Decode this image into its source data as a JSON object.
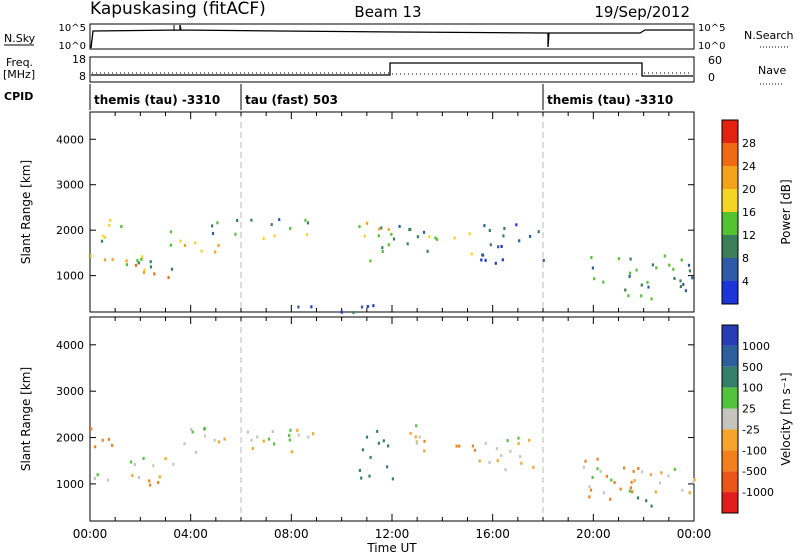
{
  "header": {
    "station": "Kapuskasing (fitACF)",
    "beam": "Beam 13",
    "date": "19/Sep/2012"
  },
  "aux_labels": {
    "nsky": "N.Sky",
    "nsearch": "N.Search",
    "freq": "Freq.",
    "freq_unit": "[MHz]",
    "nave": "Nave",
    "cpid": "CPID",
    "nsky_ticks": [
      "10^5",
      "10^0"
    ],
    "nsearch_ticks": [
      "10^5",
      "10^0"
    ],
    "freq_ticks": [
      "18",
      "8"
    ],
    "nave_ticks": [
      "60",
      "0"
    ]
  },
  "cpid_segments": [
    {
      "label": "themis (tau) -3310",
      "start_hour": 0,
      "end_hour": 6
    },
    {
      "label": "tau (fast) 503",
      "start_hour": 6,
      "end_hour": 18
    },
    {
      "label": "themis (tau) -3310",
      "start_hour": 18,
      "end_hour": 24
    }
  ],
  "colors": {
    "power": [
      "#1d35d8",
      "#2f5aa8",
      "#3a7e5a",
      "#55c232",
      "#f5d426",
      "#f5a21b",
      "#f06a12",
      "#e22310"
    ],
    "velocity": [
      "#2a3cb4",
      "#2c5f9c",
      "#357f6a",
      "#52c33c",
      "#c5c5be",
      "#f6a52a",
      "#f3801d",
      "#ec5519",
      "#e01c1c"
    ]
  },
  "chart_data": [
    {
      "type": "heatmap",
      "title": "",
      "xlabel": "Time UT",
      "ylabel": "Slant Range [km]",
      "x_tick_labels": [
        "00:00",
        "04:00",
        "08:00",
        "12:00",
        "16:00",
        "20:00",
        "00:00"
      ],
      "xlim": [
        0,
        24
      ],
      "ylim": [
        200,
        4600
      ],
      "y_ticks": [
        1000,
        2000,
        3000,
        4000
      ],
      "colorbar": {
        "label": "Power [dB]",
        "range": [
          0,
          32
        ],
        "ticks": [
          "4",
          "8",
          "12",
          "16",
          "20",
          "24",
          "28"
        ]
      },
      "dashed_vlines_hour": [
        6,
        18
      ],
      "echo_regions": [
        {
          "t0": 0,
          "t1": 2.6,
          "r0": 1050,
          "r1": 1500,
          "value": 20
        },
        {
          "t0": 0,
          "t1": 1.3,
          "r0": 1700,
          "r1": 2300,
          "value": 14
        },
        {
          "t0": 1.3,
          "t1": 3.4,
          "r0": 1150,
          "r1": 1600,
          "value": 12
        },
        {
          "t0": 2.3,
          "t1": 3.2,
          "r0": 800,
          "r1": 1100,
          "value": 26
        },
        {
          "t0": 3.0,
          "t1": 5.2,
          "r0": 1500,
          "r1": 2000,
          "value": 18
        },
        {
          "t0": 4.8,
          "t1": 9.0,
          "r0": 1850,
          "r1": 2300,
          "value": 12
        },
        {
          "t0": 10.5,
          "t1": 12.0,
          "r0": 1100,
          "r1": 2200,
          "value": 16
        },
        {
          "t0": 12.0,
          "t1": 13.3,
          "r0": 1600,
          "r1": 2400,
          "value": 8
        },
        {
          "t0": 13.3,
          "t1": 15.2,
          "r0": 1500,
          "r1": 2000,
          "value": 16
        },
        {
          "t0": 15.2,
          "t1": 18.0,
          "r0": 1300,
          "r1": 2200,
          "value": 6
        },
        {
          "t0": 19.4,
          "t1": 24.0,
          "r0": 700,
          "r1": 1500,
          "value": 10
        },
        {
          "t0": 21.0,
          "t1": 22.4,
          "r0": 500,
          "r1": 900,
          "value": 14
        },
        {
          "t0": 6.0,
          "t1": 11.5,
          "r0": 200,
          "r1": 380,
          "value": 4
        }
      ]
    },
    {
      "type": "heatmap",
      "title": "",
      "xlabel": "Time UT",
      "ylabel": "Slant Range [km]",
      "x_tick_labels": [
        "00:00",
        "04:00",
        "08:00",
        "12:00",
        "16:00",
        "20:00",
        "00:00"
      ],
      "xlim": [
        0,
        24
      ],
      "ylim": [
        200,
        4600
      ],
      "y_ticks": [
        1000,
        2000,
        3000,
        4000
      ],
      "colorbar": {
        "label": "Velocity [m s^-1]",
        "ticks": [
          "1000",
          "500",
          "100",
          "25",
          "-25",
          "-100",
          "-500",
          "-1000"
        ]
      },
      "dashed_vlines_hour": [
        6,
        18
      ],
      "echo_regions": [
        {
          "t0": 0,
          "t1": 3.4,
          "r0": 1100,
          "r1": 1600,
          "value": 0
        },
        {
          "t0": 0,
          "t1": 1.3,
          "r0": 1800,
          "r1": 2300,
          "value": -300
        },
        {
          "t0": 2.3,
          "t1": 3.2,
          "r0": 700,
          "r1": 1100,
          "value": -400
        },
        {
          "t0": 3.0,
          "t1": 9.0,
          "r0": 1700,
          "r1": 2300,
          "value": 0
        },
        {
          "t0": 10.5,
          "t1": 12.0,
          "r0": 1100,
          "r1": 2200,
          "value": 150
        },
        {
          "t0": 12.0,
          "t1": 13.3,
          "r0": 1500,
          "r1": 2300,
          "value": 0
        },
        {
          "t0": 13.2,
          "t1": 15.3,
          "r0": 1650,
          "r1": 2000,
          "value": -450
        },
        {
          "t0": 15.3,
          "t1": 18.0,
          "r0": 1300,
          "r1": 2100,
          "value": 0
        },
        {
          "t0": 19.4,
          "t1": 24.0,
          "r0": 800,
          "r1": 1400,
          "value": 0
        },
        {
          "t0": 19.6,
          "t1": 21.8,
          "r0": 700,
          "r1": 1600,
          "value": -300
        },
        {
          "t0": 21.2,
          "t1": 22.4,
          "r0": 500,
          "r1": 800,
          "value": 150
        }
      ]
    }
  ]
}
